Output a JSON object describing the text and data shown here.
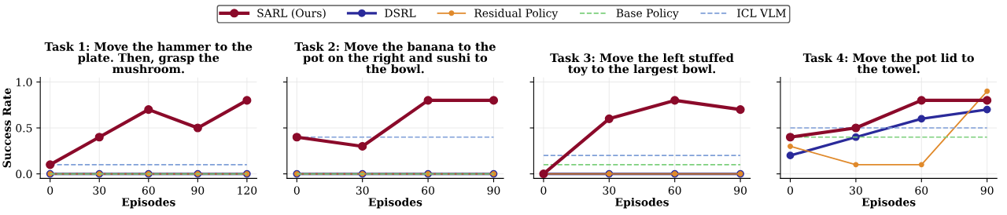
{
  "chart_data": [
    {
      "type": "line",
      "title": "Task 1: Move the hammer to the\nplate. Then, grasp the\nmushroom.",
      "xlabel": "Episodes",
      "ylabel": "Success Rate",
      "x": [
        0,
        30,
        60,
        90,
        120
      ],
      "xlim": [
        -6,
        126
      ],
      "xticks": [
        0,
        30,
        60,
        90,
        120
      ],
      "ylim": [
        -0.05,
        1.05
      ],
      "yticks": [
        {
          "value": 0,
          "label": "0.0"
        },
        {
          "value": 0.5,
          "label": "0.5"
        },
        {
          "value": 1,
          "label": "1.0"
        }
      ],
      "grid": true,
      "legend": "top",
      "marker": "circle",
      "line_style": "solid",
      "series": [
        {
          "name": "SARL (Ours)",
          "color": "#8b0a2a",
          "values": [
            0.1,
            0.4,
            0.7,
            0.5,
            0.8
          ]
        },
        {
          "name": "DSRL",
          "color": "#2a2a9a",
          "values": [
            0,
            0,
            0,
            0,
            0
          ]
        },
        {
          "name": "Residual Policy",
          "color": "#e08a2c",
          "values": [
            0,
            0,
            0,
            0,
            0
          ]
        },
        {
          "name": "Base Policy",
          "color": "#7ccf7c",
          "values": [
            0,
            0,
            0,
            0,
            0
          ],
          "marker": "none",
          "line_style": "dashed"
        },
        {
          "name": "ICL VLM",
          "color": "#7f9fd8",
          "values": [
            0.1,
            0.1,
            0.1,
            0.1,
            0.1
          ],
          "marker": "none",
          "line_style": "dashed"
        }
      ]
    },
    {
      "type": "line",
      "title": "Task 2: Move the banana to the\npot on the right and sushi to\nthe bowl.",
      "xlabel": "Episodes",
      "x": [
        0,
        30,
        60,
        90
      ],
      "xlim": [
        -4.5,
        94.5
      ],
      "xticks": [
        0,
        30,
        60,
        90
      ],
      "ylim": [
        -0.05,
        1.05
      ],
      "yticks": [
        {
          "value": 0,
          "label": null
        },
        {
          "value": 0.5,
          "label": null
        },
        {
          "value": 1,
          "label": null
        }
      ],
      "tick_labels": "x",
      "grid": true,
      "marker": "circle",
      "line_style": "solid",
      "series": [
        {
          "color": "#8b0a2a",
          "values": [
            0.4,
            0.3,
            0.8,
            0.8
          ]
        },
        {
          "color": "#2a2a9a",
          "values": [
            0,
            0,
            0,
            0
          ]
        },
        {
          "color": "#e08a2c",
          "values": [
            0,
            0,
            0,
            0
          ]
        },
        {
          "color": "#7ccf7c",
          "values": [
            0,
            0,
            0,
            0
          ],
          "marker": "none",
          "line_style": "dashed"
        },
        {
          "color": "#7f9fd8",
          "values": [
            0.4,
            0.4,
            0.4,
            0.4
          ],
          "marker": "none",
          "line_style": "dashed"
        }
      ]
    },
    {
      "type": "line",
      "title": "Task 3: Move the left stuffed\ntoy to the largest bowl.",
      "xlabel": "Episodes",
      "x": [
        0,
        30,
        60,
        90
      ],
      "xlim": [
        -4.5,
        94.5
      ],
      "xticks": [
        0,
        30,
        60,
        90
      ],
      "ylim": [
        -0.05,
        1.05
      ],
      "yticks": [
        {
          "value": 0,
          "label": null
        },
        {
          "value": 0.5,
          "label": null
        },
        {
          "value": 1,
          "label": null
        }
      ],
      "tick_labels": "x",
      "grid": true,
      "marker": "circle",
      "line_style": "solid",
      "series": [
        {
          "color": "#8b0a2a",
          "values": [
            0,
            0.6,
            0.8,
            0.7
          ]
        },
        {
          "color": "#2a2a9a",
          "values": [
            0,
            0,
            0,
            0
          ]
        },
        {
          "color": "#e08a2c",
          "values": [
            0,
            0,
            0,
            0
          ]
        },
        {
          "color": "#7ccf7c",
          "values": [
            0.1,
            0.1,
            0.1,
            0.1
          ],
          "marker": "none",
          "line_style": "dashed"
        },
        {
          "color": "#7f9fd8",
          "values": [
            0.2,
            0.2,
            0.2,
            0.2
          ],
          "marker": "none",
          "line_style": "dashed"
        }
      ]
    },
    {
      "type": "line",
      "title": "Task 4: Move the pot lid to\nthe towel.",
      "xlabel": "Episodes",
      "x": [
        0,
        30,
        60,
        90
      ],
      "xlim": [
        -4.5,
        94.5
      ],
      "xticks": [
        0,
        30,
        60,
        90
      ],
      "ylim": [
        -0.05,
        1.05
      ],
      "yticks": [
        {
          "value": 0,
          "label": null
        },
        {
          "value": 0.5,
          "label": null
        },
        {
          "value": 1,
          "label": null
        }
      ],
      "tick_labels": "x",
      "grid": true,
      "marker": "circle",
      "line_style": "solid",
      "series": [
        {
          "color": "#8b0a2a",
          "values": [
            0.4,
            0.5,
            0.8,
            0.8
          ]
        },
        {
          "color": "#2a2a9a",
          "values": [
            0.2,
            0.4,
            0.6,
            0.7
          ]
        },
        {
          "color": "#e08a2c",
          "values": [
            0.3,
            0.1,
            0.1,
            0.9
          ]
        },
        {
          "color": "#7ccf7c",
          "values": [
            0.4,
            0.4,
            0.4,
            0.4
          ],
          "marker": "none",
          "line_style": "dashed"
        },
        {
          "color": "#7f9fd8",
          "values": [
            0.5,
            0.5,
            0.5,
            0.5
          ],
          "marker": "none",
          "line_style": "dashed"
        }
      ]
    }
  ]
}
